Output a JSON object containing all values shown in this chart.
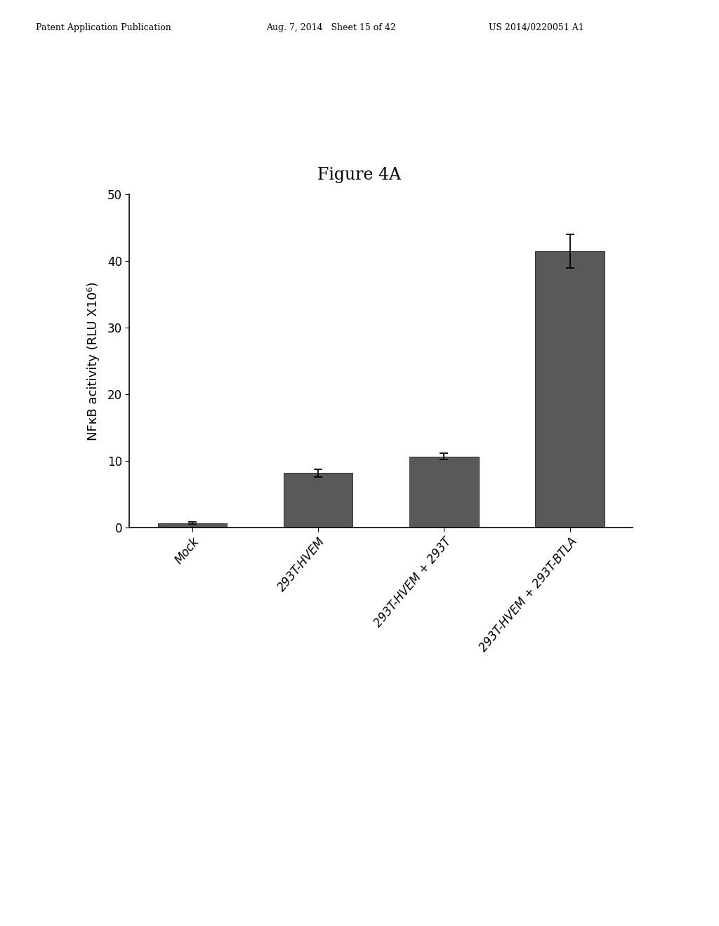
{
  "categories": [
    "Mock",
    "293T-HVEM",
    "293T-HVEM + 293T",
    "293T-HVEM + 293T-BTLA"
  ],
  "values": [
    0.7,
    8.2,
    10.7,
    41.5
  ],
  "errors": [
    0.15,
    0.6,
    0.5,
    2.5
  ],
  "bar_color": "#595959",
  "bar_width": 0.55,
  "ylim": [
    0,
    50
  ],
  "yticks": [
    0,
    10,
    20,
    30,
    40,
    50
  ],
  "ylabel": "NFκB acitivity (RLU X10⁶)",
  "title": "Figure 4A",
  "title_fontsize": 17,
  "axis_fontsize": 13,
  "tick_fontsize": 12,
  "background_color": "#ffffff",
  "header_left": "Patent Application Publication",
  "header_mid": "Aug. 7, 2014   Sheet 15 of 42",
  "header_right": "US 2014/0220051 A1"
}
